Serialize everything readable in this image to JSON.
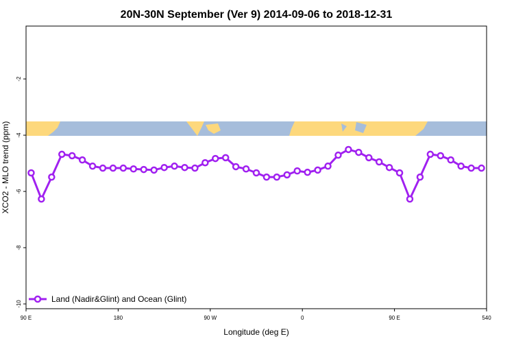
{
  "chart_data": {
    "type": "line",
    "title": "20N-30N September (Ver 9)   2014-09-06 to 2018-12-31",
    "x_label": "Longitude (deg E)",
    "y_label": "XCO2 - MLO trend (ppm)",
    "x": [
      95,
      105,
      115,
      125,
      135,
      145,
      155,
      165,
      175,
      185,
      195,
      205,
      215,
      225,
      235,
      245,
      255,
      265,
      275,
      285,
      295,
      305,
      315,
      325,
      335,
      345,
      355,
      365,
      375,
      385,
      395,
      405,
      415,
      425,
      435,
      445,
      455,
      465,
      475,
      485,
      495,
      505,
      515,
      525,
      535
    ],
    "series": [
      {
        "name": "Land (Nadir&Glint) and Ocean (Glint)",
        "color": "#a020f0",
        "values": [
          -5.34,
          -6.27,
          -5.49,
          -4.68,
          -4.73,
          -4.88,
          -5.1,
          -5.17,
          -5.17,
          -5.17,
          -5.2,
          -5.22,
          -5.24,
          -5.15,
          -5.1,
          -5.15,
          -5.17,
          -4.98,
          -4.83,
          -4.8,
          -5.12,
          -5.2,
          -5.34,
          -5.49,
          -5.49,
          -5.41,
          -5.27,
          -5.32,
          -5.24,
          -5.1,
          -4.71,
          -4.51,
          -4.61,
          -4.8,
          -4.95,
          -5.15,
          -5.34,
          -6.27,
          -5.49,
          -4.68,
          -4.73,
          -4.88,
          -5.1,
          -5.17,
          -5.17
        ]
      }
    ],
    "xlim": [
      90,
      540
    ],
    "xticks": [
      {
        "value": 90,
        "label": "90 E"
      },
      180,
      {
        "value": 270,
        "label": "90 W"
      },
      {
        "value": 360,
        "label": "0"
      },
      {
        "value": 450,
        "label": "90 E"
      },
      540
    ],
    "ylim": [
      -10.17,
      -0.12
    ],
    "yticks": [
      -10,
      -8,
      -6,
      -4,
      -2
    ],
    "legend": "bottom-left"
  }
}
